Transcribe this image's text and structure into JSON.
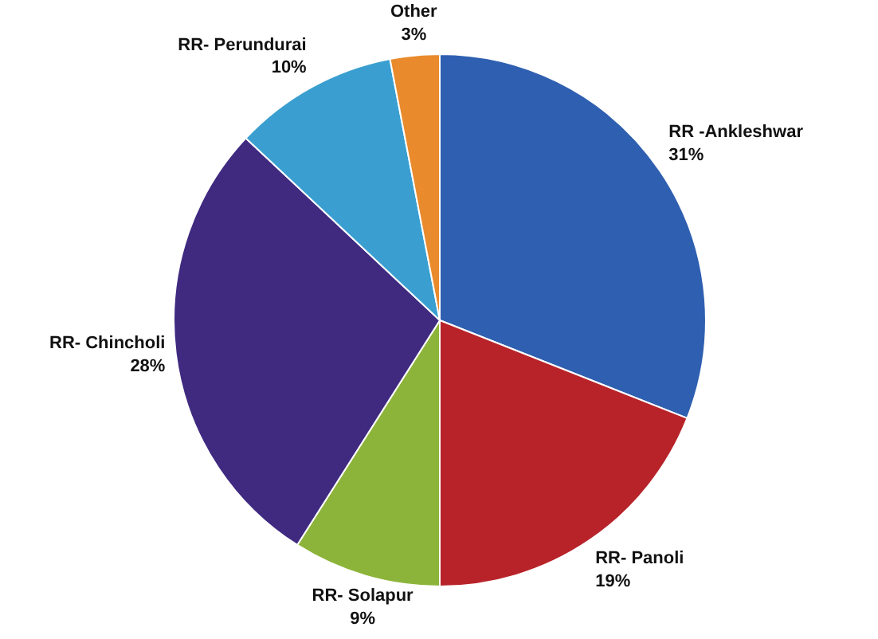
{
  "chart_data": {
    "type": "pie",
    "categories": [
      "RR -Ankleshwar",
      "RR- Panoli",
      "RR- Solapur",
      "RR- Chincholi",
      "RR- Perundurai",
      "Other"
    ],
    "values": [
      31,
      19,
      9,
      28,
      10,
      3
    ],
    "value_labels": [
      "31%",
      "19%",
      "9%",
      "28%",
      "10%",
      "3%"
    ],
    "colors": [
      "#2f5fb0",
      "#b8232a",
      "#8db43a",
      "#3f2a80",
      "#3a9fd0",
      "#e98a2c"
    ]
  }
}
